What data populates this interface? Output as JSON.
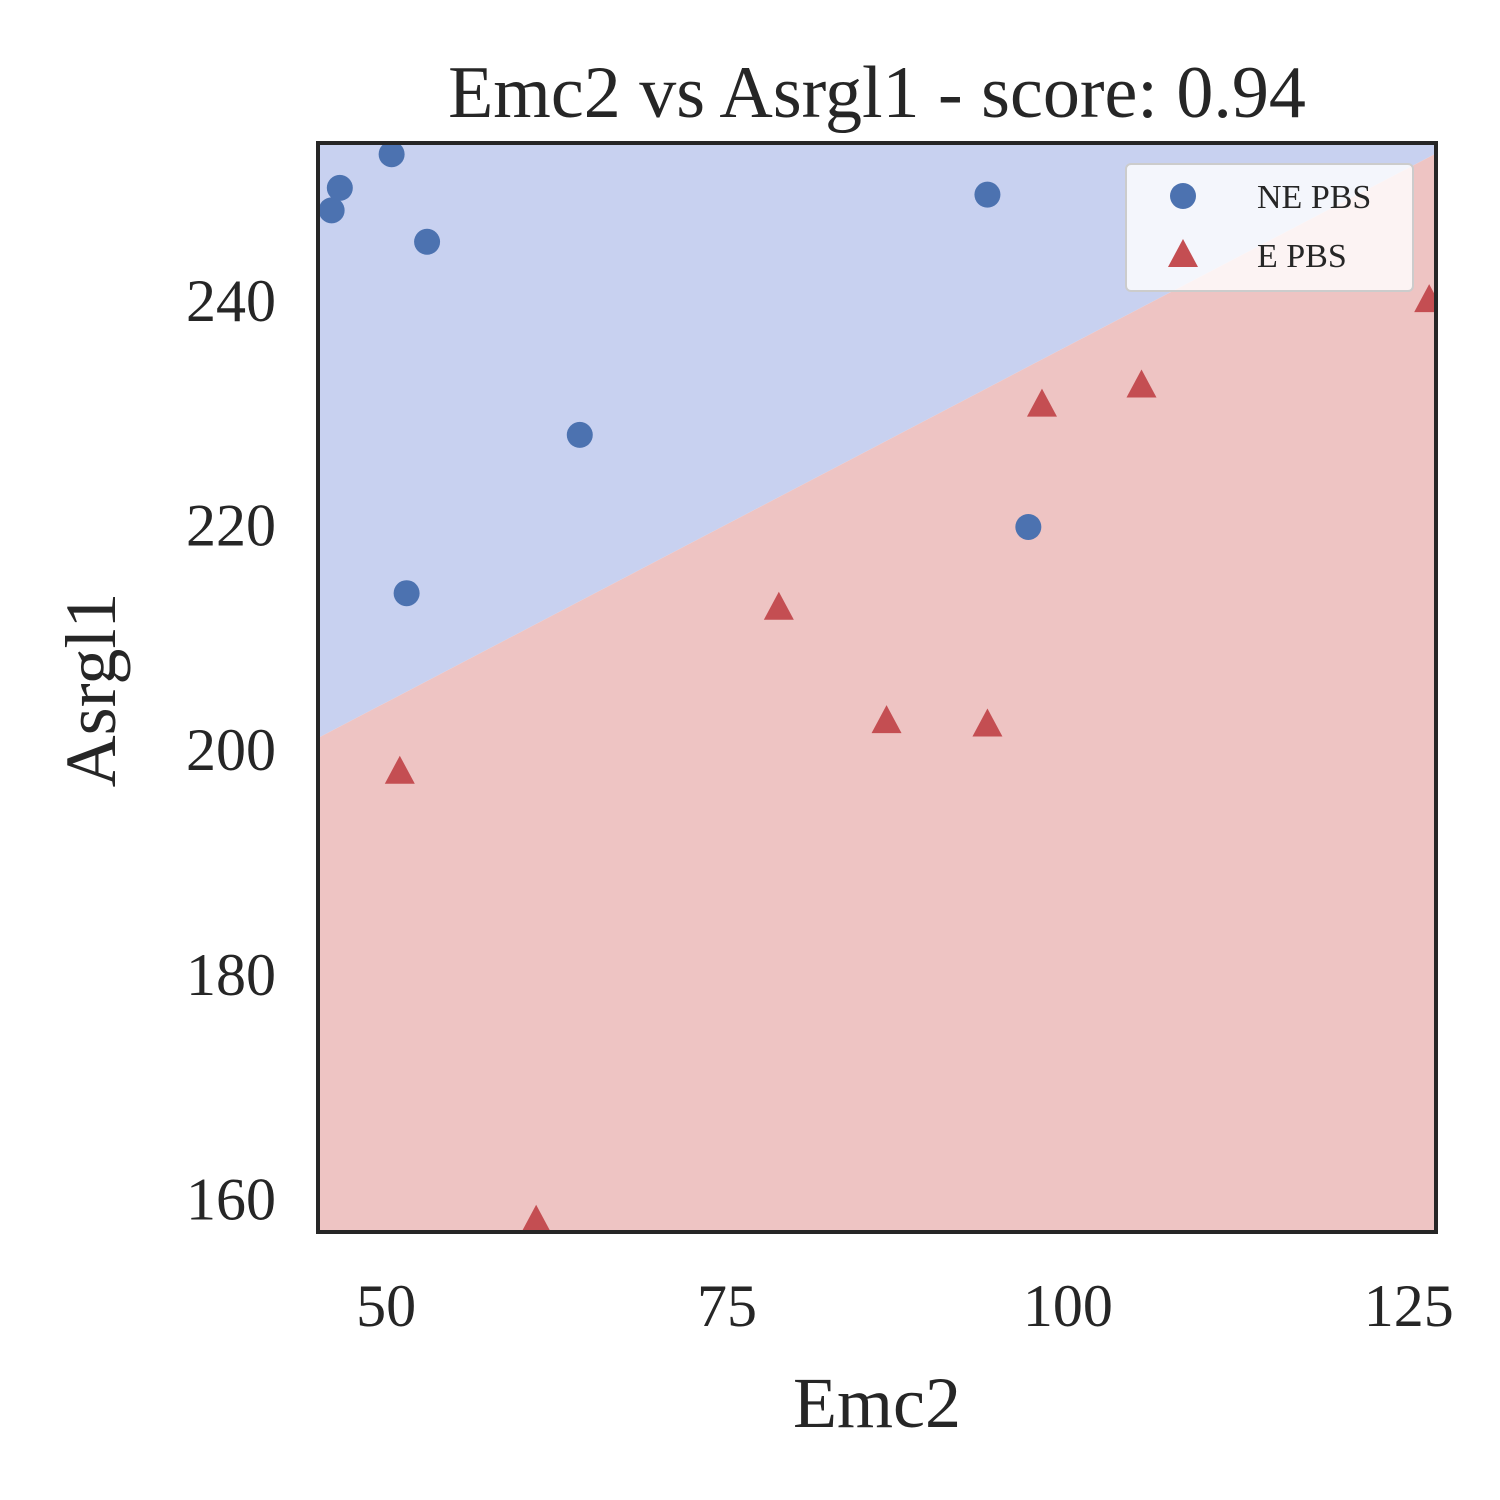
{
  "chart_data": {
    "type": "scatter",
    "title": "Emc2 vs Asrgl1 - score: 0.94",
    "xlabel": "Emc2",
    "ylabel": "Asrgl1",
    "xlim": [
      45,
      127
    ],
    "ylim": [
      157,
      254
    ],
    "xticks": [
      50,
      75,
      100,
      125
    ],
    "yticks": [
      160,
      180,
      200,
      220,
      240
    ],
    "grid": false,
    "legend_position": "top-right",
    "decision_boundary": {
      "x": [
        45,
        127
      ],
      "y": [
        201,
        254
      ],
      "above_region_color": "#c8d1f0",
      "below_region_color": "#eec4c3"
    },
    "series": [
      {
        "name": "NE PBS",
        "marker": "circle",
        "color": "#4c72b0",
        "points": [
          [
            46.0,
            248.0
          ],
          [
            46.6,
            250.0
          ],
          [
            50.4,
            253.0
          ],
          [
            53.0,
            245.2
          ],
          [
            64.2,
            228.0
          ],
          [
            51.5,
            213.9
          ],
          [
            94.1,
            249.4
          ],
          [
            97.1,
            219.8
          ]
        ]
      },
      {
        "name": "E PBS",
        "marker": "triangle",
        "color": "#c44e52",
        "points": [
          [
            51.0,
            198.0
          ],
          [
            61.0,
            158.0
          ],
          [
            78.8,
            212.6
          ],
          [
            86.7,
            202.5
          ],
          [
            94.1,
            202.2
          ],
          [
            98.1,
            230.7
          ],
          [
            105.4,
            232.4
          ],
          [
            126.5,
            240.0
          ]
        ]
      }
    ]
  }
}
